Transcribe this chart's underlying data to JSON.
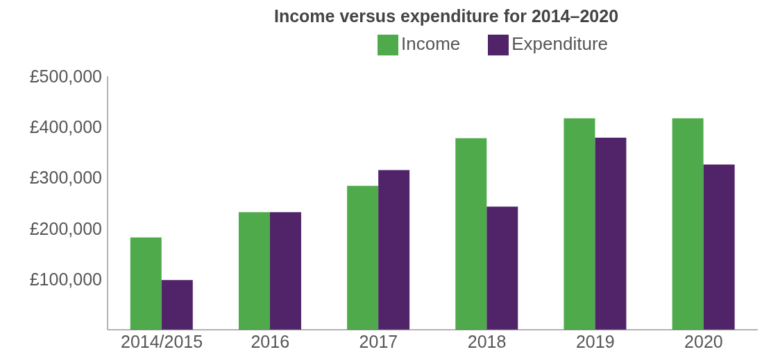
{
  "chart_data": {
    "type": "bar",
    "title": "Income versus expenditure for 2014–2020",
    "categories": [
      "2014/2015",
      "2016",
      "2017",
      "2018",
      "2019",
      "2020"
    ],
    "series": [
      {
        "name": "Income",
        "color": "#4faa4c",
        "values": [
          182000,
          232000,
          284000,
          378000,
          417000,
          417000
        ]
      },
      {
        "name": "Expenditure",
        "color": "#51246a",
        "values": [
          98000,
          232000,
          315000,
          243000,
          379000,
          326000
        ]
      }
    ],
    "ylim": [
      0,
      500000
    ],
    "yticks": [
      {
        "value": 100000,
        "label": "£100,000"
      },
      {
        "value": 200000,
        "label": "£200,000"
      },
      {
        "value": 300000,
        "label": "£300,000"
      },
      {
        "value": 400000,
        "label": "£400,000"
      },
      {
        "value": 500000,
        "label": "£500,000"
      }
    ],
    "legend": "top",
    "grid": false
  }
}
